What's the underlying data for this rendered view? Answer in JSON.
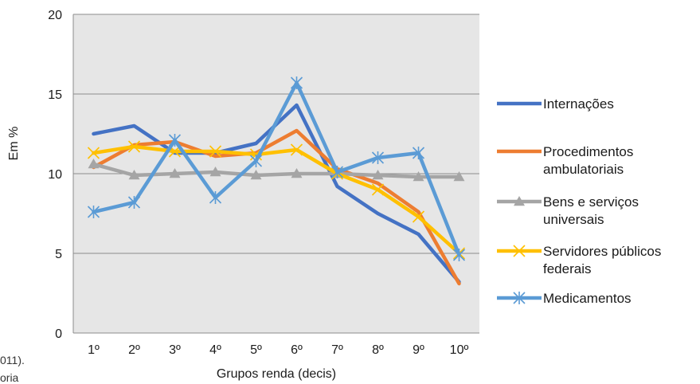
{
  "chart_data": {
    "type": "line",
    "title": "",
    "xlabel": "Grupos renda (decis)",
    "ylabel": "Em %",
    "ylim": [
      0,
      20
    ],
    "yticks": [
      0,
      5,
      10,
      15,
      20
    ],
    "grid": true,
    "legend_position": "right",
    "categories": [
      "1º",
      "2º",
      "3º",
      "4º",
      "5º",
      "6º",
      "7º",
      "8º",
      "9º",
      "10º"
    ],
    "series": [
      {
        "name": "Internações",
        "color": "#4472c4",
        "marker": "none",
        "values": [
          12.5,
          13.0,
          11.3,
          11.3,
          11.9,
          14.3,
          9.2,
          7.5,
          6.2,
          3.2
        ]
      },
      {
        "name": "Procedimentos ambulatoriais",
        "color": "#ed7d31",
        "marker": "none",
        "values": [
          10.4,
          11.8,
          12.0,
          11.1,
          11.3,
          12.7,
          10.3,
          9.4,
          7.6,
          3.1
        ]
      },
      {
        "name": "Bens e serviços universais",
        "color": "#a5a5a5",
        "marker": "triangle",
        "values": [
          10.6,
          9.9,
          10.0,
          10.1,
          9.9,
          10.0,
          10.0,
          9.9,
          9.8,
          9.8
        ]
      },
      {
        "name": "Servidores públicos federais",
        "color": "#ffc000",
        "marker": "x",
        "values": [
          11.3,
          11.7,
          11.4,
          11.4,
          11.2,
          11.5,
          10.0,
          9.0,
          7.3,
          5.0
        ]
      },
      {
        "name": "Medicamentos",
        "color": "#5b9bd5",
        "marker": "asterisk",
        "values": [
          7.6,
          8.2,
          12.1,
          8.5,
          10.8,
          15.7,
          10.1,
          11.0,
          11.3,
          4.9
        ]
      }
    ]
  },
  "clipped_text": [
    "011).",
    "oria"
  ]
}
